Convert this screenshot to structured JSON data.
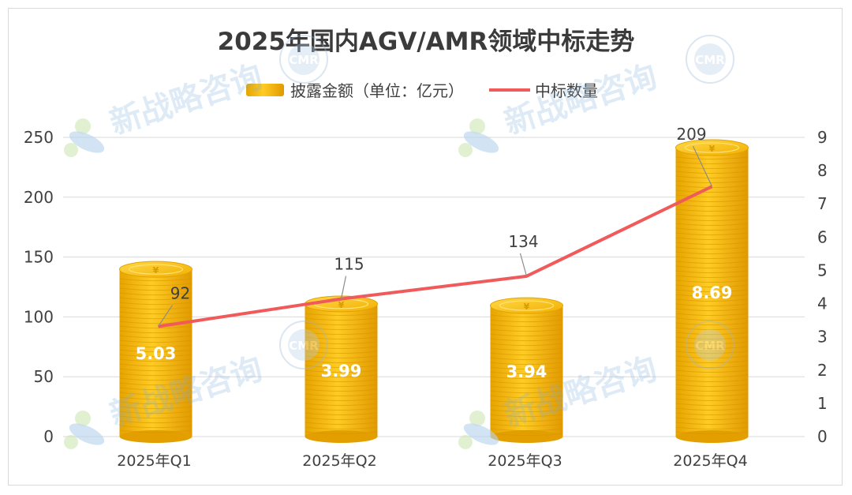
{
  "chart_data": {
    "type": "bar",
    "title": "2025年国内AGV/AMR领域中标走势",
    "categories": [
      "2025年Q1",
      "2025年Q2",
      "2025年Q3",
      "2025年Q4"
    ],
    "series": [
      {
        "name": "披露金额（单位：亿元）",
        "type": "bar",
        "axis": "right",
        "values": [
          5.03,
          3.99,
          3.94,
          8.69
        ],
        "color": "#f5b800"
      },
      {
        "name": "中标数量",
        "type": "line",
        "axis": "left",
        "values": [
          92,
          115,
          134,
          209
        ],
        "color": "#f05a5a"
      }
    ],
    "y_left": {
      "min": 0,
      "max": 250,
      "ticks": [
        0,
        50,
        100,
        150,
        200,
        250
      ]
    },
    "y_right": {
      "min": 0,
      "max": 9,
      "ticks": [
        0,
        1,
        2,
        3,
        4,
        5,
        6,
        7,
        8,
        9
      ]
    },
    "legend_position": "top-center",
    "grid": "horizontal"
  },
  "watermark": {
    "text": "新战略咨询",
    "logo_text": "CMR"
  }
}
